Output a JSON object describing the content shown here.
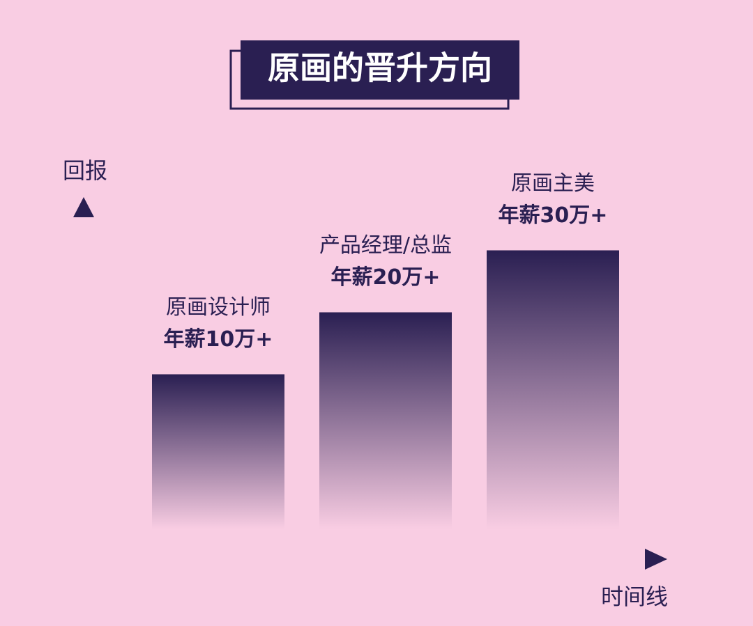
{
  "chart_data": {
    "type": "bar",
    "title": "原画的晋升方向",
    "ylabel": "回报",
    "xlabel": "时间线",
    "categories": [
      "原画设计师",
      "产品经理/总监",
      "原画主美"
    ],
    "values": [
      10,
      20,
      30
    ],
    "value_labels": [
      "年薪10万+",
      "年薪20万+",
      "年薪30万+"
    ],
    "color": "#2a1f52",
    "ylim": [
      -15,
      35
    ]
  }
}
